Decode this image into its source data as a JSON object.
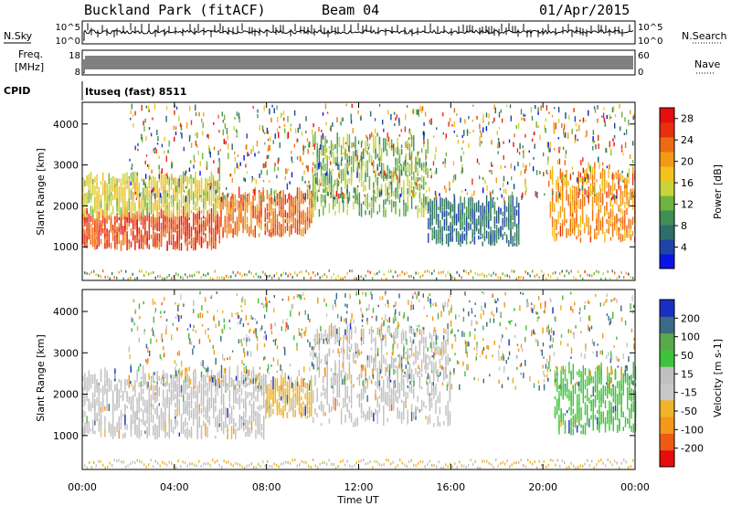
{
  "header": {
    "station": "Buckland Park (fitACF)",
    "beam": "Beam 04",
    "date": "01/Apr/2015"
  },
  "strip_labels": {
    "nsky": "N.Sky",
    "nsearch": "N.Search",
    "freq": "Freq.",
    "freq_unit": "[MHz]",
    "nave": "Nave",
    "cpid": "CPID",
    "cpid_value": "Ituseq (fast) 8511",
    "noise_ticks": [
      "10^5",
      "10^0"
    ],
    "freq_ticks": [
      "18",
      "8"
    ],
    "nave_ticks": [
      "60",
      "0"
    ]
  },
  "axis_labels": {
    "xlabel": "Time UT",
    "ylabel_power": "Slant Range [km]",
    "ylabel_velocity": "Slant Range [km]"
  },
  "colors": {
    "power": [
      "#0a14e6",
      "#1f44a8",
      "#2e6e6a",
      "#3f8f56",
      "#6fb43e",
      "#c9d43a",
      "#f3c21d",
      "#f29a16",
      "#ee6b12",
      "#e83010",
      "#e50f0f"
    ],
    "velocity": [
      "#e80d0d",
      "#ef5a14",
      "#f4971a",
      "#efb428",
      "#c8c8c8",
      "#c0c0c0",
      "#3ec43a",
      "#59a94e",
      "#3a6a86",
      "#1a2fc1"
    ],
    "gray": "#c0c0c0"
  },
  "chart_data": [
    {
      "type": "heatmap",
      "name": "Power",
      "title": "Power [dB]",
      "xlabel": "Time UT",
      "ylabel": "Slant Range [km]",
      "x_ticks": [
        "00:00",
        "04:00",
        "08:00",
        "12:00",
        "16:00",
        "20:00",
        "00:00"
      ],
      "y_ticks": [
        1000,
        2000,
        3000,
        4000
      ],
      "xlim_hours": [
        0,
        24
      ],
      "ylim_km": [
        180,
        4530
      ],
      "colorbar_ticks": [
        4,
        8,
        12,
        16,
        20,
        24,
        28
      ],
      "colorbar_label": "Power [dB]",
      "colorbar_range": [
        0,
        30
      ],
      "regions": [
        {
          "t0": 0,
          "t1": 6,
          "r0": 900,
          "r1": 1700,
          "value": 26
        },
        {
          "t0": 0,
          "t1": 6,
          "r0": 1700,
          "r1": 2600,
          "value": 16
        },
        {
          "t0": 6,
          "t1": 10,
          "r0": 1200,
          "r1": 2200,
          "value": 24
        },
        {
          "t0": 10,
          "t1": 15,
          "r0": 1700,
          "r1": 3500,
          "value": 12
        },
        {
          "t0": 15,
          "t1": 19,
          "r0": 1000,
          "r1": 2000,
          "value": 6
        },
        {
          "t0": 20.3,
          "t1": 24,
          "r0": 1100,
          "r1": 2700,
          "value": 22
        }
      ]
    },
    {
      "type": "heatmap",
      "name": "Velocity",
      "title": "Velocity [m s^-1]",
      "xlabel": "Time UT",
      "ylabel": "Slant Range [km]",
      "x_ticks": [
        "00:00",
        "04:00",
        "08:00",
        "12:00",
        "16:00",
        "20:00",
        "00:00"
      ],
      "y_ticks": [
        1000,
        2000,
        3000,
        4000
      ],
      "xlim_hours": [
        0,
        24
      ],
      "ylim_km": [
        180,
        4530
      ],
      "colorbar_ticks": [
        -200,
        -100,
        -50,
        -15,
        15,
        50,
        100,
        200
      ],
      "colorbar_label": "Velocity [m s-1]",
      "regions": [
        {
          "t0": 0,
          "t1": 8,
          "r0": 900,
          "r1": 2400,
          "value": 0
        },
        {
          "t0": 8,
          "t1": 10,
          "r0": 1400,
          "r1": 2200,
          "value": -60
        },
        {
          "t0": 10,
          "t1": 16,
          "r0": 1200,
          "r1": 3500,
          "value": 0
        },
        {
          "t0": 20.5,
          "t1": 24,
          "r0": 1000,
          "r1": 2500,
          "value": 30
        }
      ]
    }
  ]
}
